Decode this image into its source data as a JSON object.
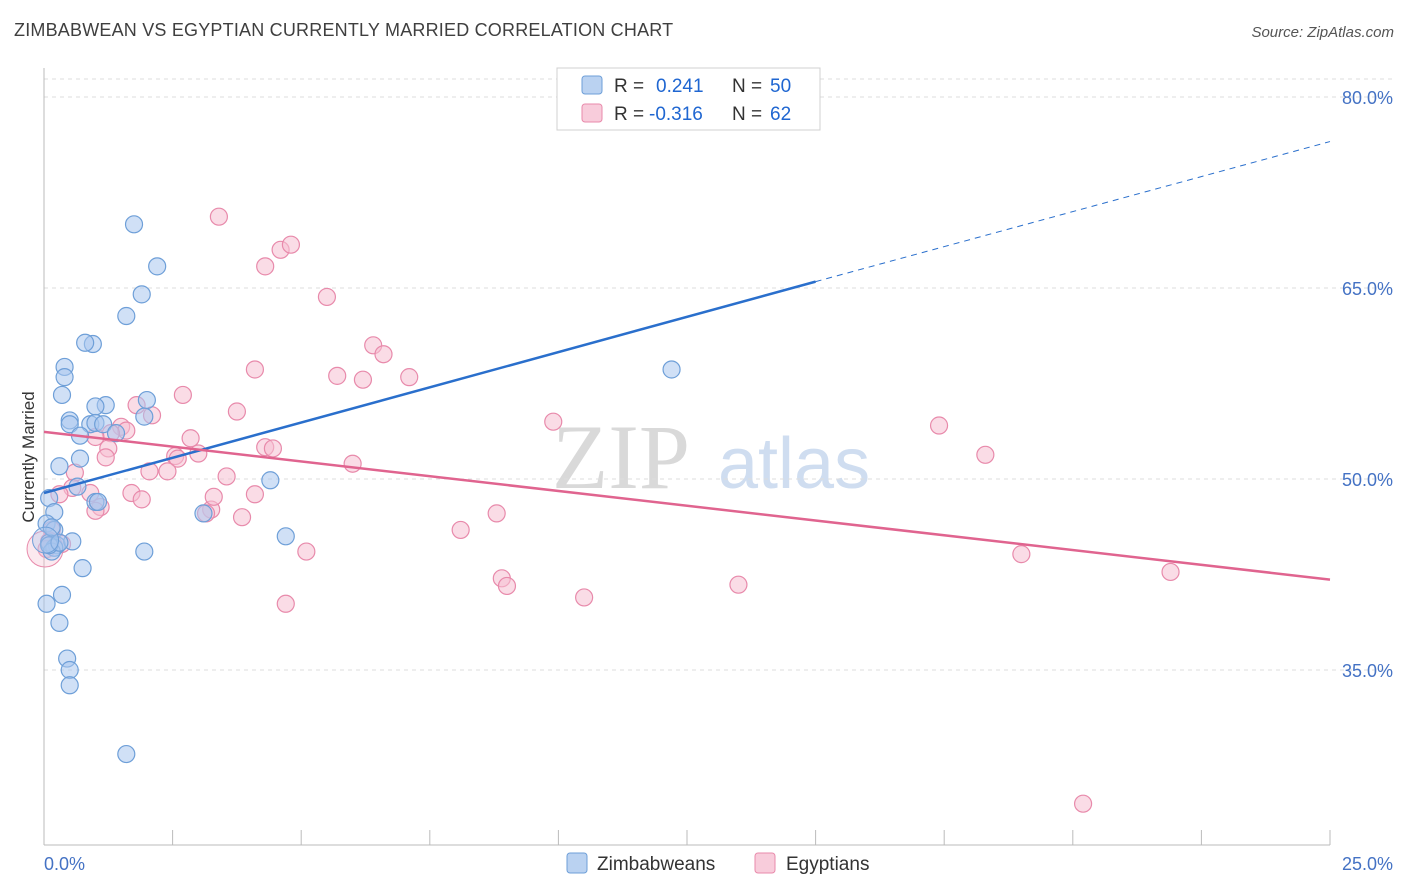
{
  "title": "ZIMBABWEAN VS EGYPTIAN CURRENTLY MARRIED CORRELATION CHART",
  "source": "Source: ZipAtlas.com",
  "watermark": {
    "zip": "ZIP",
    "atlas": "atlas"
  },
  "colors": {
    "zim_fill": "#a9c7ee",
    "zim_stroke": "#6e9fd8",
    "zim_line": "#2a6fcc",
    "egy_fill": "#f6bfd2",
    "egy_stroke": "#e88aab",
    "egy_line": "#e0648f",
    "grid": "#dddddd",
    "tick_label": "#4472c4"
  },
  "legend": {
    "row1": {
      "r_label": "R =",
      "r_value": "0.241",
      "n_label": "N =",
      "n_value": "50"
    },
    "row2": {
      "r_label": "R =",
      "r_value": "-0.316",
      "n_label": "N =",
      "n_value": "62"
    }
  },
  "chart_data": {
    "type": "scatter",
    "title": "ZIMBABWEAN VS EGYPTIAN CURRENTLY MARRIED CORRELATION CHART",
    "xlabel": "",
    "ylabel": "Currently Married",
    "xlim": [
      0,
      25
    ],
    "ylim": [
      20,
      82
    ],
    "x_tick_labels": [
      "0.0%",
      "25.0%"
    ],
    "y_ticks": [
      35,
      50,
      65,
      80
    ],
    "y_tick_labels": [
      "35.0%",
      "50.0%",
      "65.0%",
      "80.0%"
    ],
    "legend_position": "top-center",
    "series": [
      {
        "name": "Zimbabweans",
        "r": 0.241,
        "n": 50,
        "trend": {
          "x0": 0.0,
          "y0": 48.9,
          "x1": 15.0,
          "y1": 65.5,
          "dashed_to_x": 25.0,
          "dashed_to_y": 76.5
        },
        "points": [
          [
            1.75,
            70.0
          ],
          [
            2.2,
            66.7
          ],
          [
            1.9,
            64.5
          ],
          [
            1.6,
            62.8
          ],
          [
            0.95,
            60.6
          ],
          [
            0.8,
            60.7
          ],
          [
            0.4,
            58.8
          ],
          [
            0.4,
            58.0
          ],
          [
            0.35,
            56.6
          ],
          [
            1.2,
            55.8
          ],
          [
            1.0,
            55.7
          ],
          [
            2.0,
            56.2
          ],
          [
            0.5,
            54.6
          ],
          [
            0.5,
            54.3
          ],
          [
            0.9,
            54.3
          ],
          [
            1.0,
            54.4
          ],
          [
            1.15,
            54.3
          ],
          [
            1.4,
            53.6
          ],
          [
            1.95,
            54.9
          ],
          [
            0.7,
            53.4
          ],
          [
            0.7,
            51.6
          ],
          [
            0.3,
            51.0
          ],
          [
            0.65,
            49.4
          ],
          [
            0.1,
            48.5
          ],
          [
            0.2,
            47.4
          ],
          [
            0.05,
            46.5
          ],
          [
            0.2,
            46.0
          ],
          [
            1.0,
            48.2
          ],
          [
            1.05,
            48.2
          ],
          [
            0.1,
            45.0
          ],
          [
            0.25,
            44.8
          ],
          [
            0.55,
            45.1
          ],
          [
            0.2,
            44.6
          ],
          [
            0.15,
            44.3
          ],
          [
            0.75,
            43.0
          ],
          [
            0.35,
            40.9
          ],
          [
            0.05,
            40.2
          ],
          [
            0.3,
            38.7
          ],
          [
            0.45,
            35.9
          ],
          [
            0.5,
            35.0
          ],
          [
            0.5,
            33.8
          ],
          [
            1.6,
            28.4
          ],
          [
            4.4,
            49.9
          ],
          [
            4.7,
            45.5
          ],
          [
            3.1,
            47.3
          ],
          [
            1.95,
            44.3
          ],
          [
            12.2,
            58.6
          ],
          [
            0.1,
            44.8
          ],
          [
            0.3,
            45.0
          ],
          [
            0.15,
            46.2
          ]
        ]
      },
      {
        "name": "Egyptians",
        "r": -0.316,
        "n": 62,
        "trend": {
          "x0": 0.0,
          "y0": 53.7,
          "x1": 25.0,
          "y1": 42.1
        },
        "points": [
          [
            3.4,
            70.6
          ],
          [
            4.6,
            68.0
          ],
          [
            4.8,
            68.4
          ],
          [
            4.3,
            66.7
          ],
          [
            5.5,
            64.3
          ],
          [
            6.4,
            60.5
          ],
          [
            6.6,
            59.8
          ],
          [
            4.1,
            58.6
          ],
          [
            5.7,
            58.1
          ],
          [
            6.2,
            57.8
          ],
          [
            7.1,
            58.0
          ],
          [
            2.7,
            56.6
          ],
          [
            1.8,
            55.8
          ],
          [
            3.75,
            55.3
          ],
          [
            2.1,
            55.0
          ],
          [
            1.5,
            54.1
          ],
          [
            1.6,
            53.8
          ],
          [
            1.3,
            53.6
          ],
          [
            2.85,
            53.2
          ],
          [
            1.0,
            53.3
          ],
          [
            1.25,
            52.4
          ],
          [
            4.3,
            52.5
          ],
          [
            4.45,
            52.4
          ],
          [
            3.0,
            52.0
          ],
          [
            2.55,
            51.8
          ],
          [
            2.6,
            51.6
          ],
          [
            1.2,
            51.7
          ],
          [
            6.0,
            51.2
          ],
          [
            0.6,
            50.5
          ],
          [
            2.05,
            50.6
          ],
          [
            2.4,
            50.6
          ],
          [
            3.55,
            50.2
          ],
          [
            9.9,
            54.5
          ],
          [
            1.7,
            48.9
          ],
          [
            1.9,
            48.4
          ],
          [
            0.9,
            48.9
          ],
          [
            1.1,
            47.8
          ],
          [
            1.0,
            47.5
          ],
          [
            3.25,
            47.6
          ],
          [
            3.15,
            47.3
          ],
          [
            3.3,
            48.6
          ],
          [
            3.85,
            47.0
          ],
          [
            4.1,
            48.8
          ],
          [
            5.1,
            44.3
          ],
          [
            8.1,
            46.0
          ],
          [
            8.8,
            47.3
          ],
          [
            0.55,
            49.3
          ],
          [
            0.3,
            48.8
          ],
          [
            0.15,
            46.0
          ],
          [
            0.1,
            45.1
          ],
          [
            0.35,
            44.9
          ],
          [
            8.9,
            42.2
          ],
          [
            9.0,
            41.6
          ],
          [
            10.5,
            40.7
          ],
          [
            13.5,
            41.7
          ],
          [
            4.7,
            40.2
          ],
          [
            17.4,
            54.2
          ],
          [
            18.3,
            51.9
          ],
          [
            19.0,
            44.1
          ],
          [
            21.9,
            42.7
          ],
          [
            20.2,
            24.5
          ],
          [
            0.05,
            44.5
          ]
        ]
      }
    ]
  }
}
